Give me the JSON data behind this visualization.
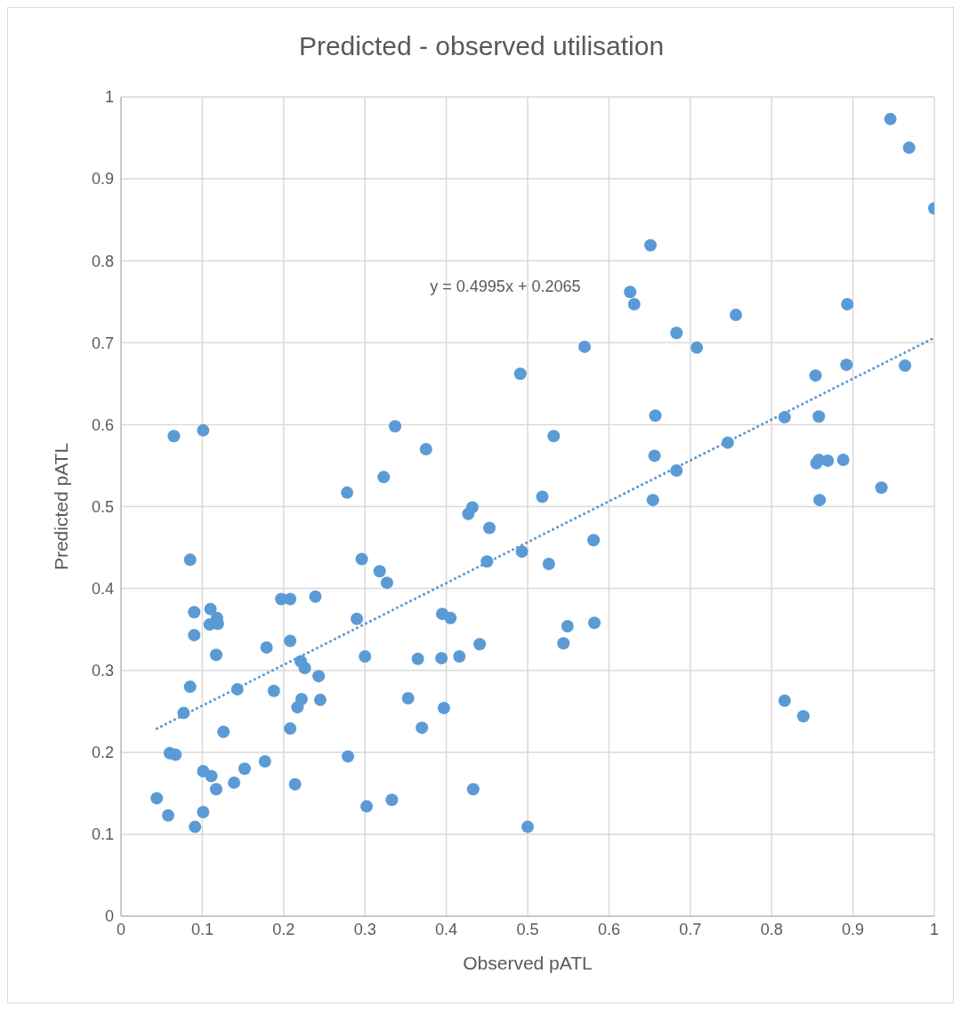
{
  "chart_data": {
    "type": "scatter",
    "title": "Predicted - observed utilisation",
    "xlabel": "Observed pATL",
    "ylabel": "Predicted pATL",
    "annotations": [
      "y = 0.4995x + 0.2065"
    ],
    "xlim": [
      0,
      1
    ],
    "ylim": [
      0,
      1
    ],
    "xticks": [
      0,
      0.1,
      0.2,
      0.3,
      0.4,
      0.5,
      0.6,
      0.7,
      0.8,
      0.9,
      1
    ],
    "yticks": [
      0,
      0.1,
      0.2,
      0.3,
      0.4,
      0.5,
      0.6,
      0.7,
      0.8,
      0.9,
      1
    ],
    "grid": true,
    "marker": "circle",
    "series": [
      {
        "type": "scatter",
        "color": "#5b9bd5",
        "x": [
          0.946,
          0.969,
          1.0,
          0.651,
          0.626,
          0.631,
          0.893,
          0.756,
          0.683,
          0.57,
          0.708,
          0.892,
          0.964,
          0.491,
          0.854,
          0.657,
          0.858,
          0.816,
          0.656,
          0.746,
          0.683,
          0.654,
          0.855,
          0.858,
          0.869,
          0.888,
          0.935,
          0.859,
          0.532,
          0.337,
          0.375,
          0.518,
          0.432,
          0.323,
          0.065,
          0.101,
          0.278,
          0.085,
          0.296,
          0.318,
          0.327,
          0.197,
          0.208,
          0.239,
          0.09,
          0.11,
          0.118,
          0.109,
          0.119,
          0.29,
          0.09,
          0.208,
          0.179,
          0.117,
          0.3,
          0.221,
          0.226,
          0.243,
          0.085,
          0.143,
          0.188,
          0.077,
          0.222,
          0.217,
          0.245,
          0.126,
          0.208,
          0.06,
          0.067,
          0.279,
          0.101,
          0.111,
          0.177,
          0.152,
          0.139,
          0.117,
          0.214,
          0.044,
          0.058,
          0.101,
          0.091,
          0.302,
          0.333,
          0.427,
          0.453,
          0.581,
          0.45,
          0.493,
          0.526,
          0.395,
          0.405,
          0.549,
          0.582,
          0.544,
          0.441,
          0.365,
          0.394,
          0.416,
          0.353,
          0.397,
          0.37,
          0.433,
          0.5,
          0.816,
          0.839
        ],
        "values": [
          0.973,
          0.938,
          0.864,
          0.819,
          0.762,
          0.747,
          0.747,
          0.734,
          0.712,
          0.695,
          0.694,
          0.673,
          0.672,
          0.662,
          0.66,
          0.611,
          0.61,
          0.609,
          0.562,
          0.578,
          0.544,
          0.508,
          0.553,
          0.557,
          0.556,
          0.557,
          0.523,
          0.508,
          0.586,
          0.598,
          0.57,
          0.512,
          0.499,
          0.536,
          0.586,
          0.593,
          0.517,
          0.435,
          0.436,
          0.421,
          0.407,
          0.387,
          0.387,
          0.39,
          0.371,
          0.375,
          0.364,
          0.356,
          0.357,
          0.363,
          0.343,
          0.336,
          0.328,
          0.319,
          0.317,
          0.311,
          0.303,
          0.293,
          0.28,
          0.277,
          0.275,
          0.248,
          0.265,
          0.255,
          0.264,
          0.225,
          0.229,
          0.199,
          0.197,
          0.195,
          0.177,
          0.171,
          0.189,
          0.18,
          0.163,
          0.155,
          0.161,
          0.144,
          0.123,
          0.127,
          0.109,
          0.134,
          0.142,
          0.491,
          0.474,
          0.459,
          0.433,
          0.445,
          0.43,
          0.369,
          0.364,
          0.354,
          0.358,
          0.333,
          0.332,
          0.314,
          0.315,
          0.317,
          0.266,
          0.254,
          0.23,
          0.155,
          0.109,
          0.263,
          0.244
        ]
      },
      {
        "type": "line",
        "color": "#5b9bd5",
        "line_style": "dotted",
        "marker": "none",
        "x": [
          0.044,
          1
        ],
        "values": [
          0.229,
          0.706
        ]
      }
    ]
  }
}
